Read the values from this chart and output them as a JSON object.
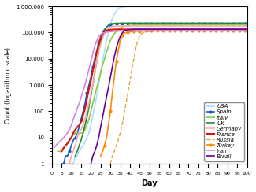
{
  "title": "",
  "xlabel": "Day",
  "ylabel": "Count (logarithmic scale)",
  "xlim": [
    0,
    100
  ],
  "ylim": [
    1,
    1000000
  ],
  "countries": [
    "USA",
    "Spain",
    "Italy",
    "UK",
    "Germany",
    "France",
    "Russia",
    "Turkey",
    "Iran",
    "Brazil"
  ],
  "colors": {
    "USA": "#aaddff",
    "Spain": "#1155cc",
    "Italy": "#88cc44",
    "UK": "#228833",
    "Germany": "#ffaaaa",
    "France": "#dd1111",
    "Russia": "#ddaa44",
    "Turkey": "#ff8800",
    "Iran": "#cc88dd",
    "Brazil": "#660099"
  },
  "xticks": [
    0,
    5,
    10,
    15,
    20,
    25,
    30,
    35,
    40,
    45,
    50,
    55,
    60,
    65,
    70,
    75,
    80,
    85,
    90,
    95,
    100
  ],
  "ytick_vals": [
    1,
    10,
    100,
    1000,
    10000,
    100000,
    1000000
  ],
  "line_styles": {
    "USA": {
      "lw": 1.2,
      "ls": "-",
      "marker": "",
      "ms": 0,
      "me": 3
    },
    "Spain": {
      "lw": 1.2,
      "ls": "-",
      "marker": "o",
      "ms": 2,
      "me": 3
    },
    "Italy": {
      "lw": 1.2,
      "ls": "-",
      "marker": "",
      "ms": 0,
      "me": 3
    },
    "UK": {
      "lw": 1.2,
      "ls": "-",
      "marker": "",
      "ms": 0,
      "me": 3
    },
    "Germany": {
      "lw": 1.2,
      "ls": "-",
      "marker": "",
      "ms": 0,
      "me": 3
    },
    "France": {
      "lw": 1.5,
      "ls": "-",
      "marker": "",
      "ms": 0,
      "me": 3
    },
    "Russia": {
      "lw": 1.0,
      "ls": "--",
      "marker": "",
      "ms": 0,
      "me": 3
    },
    "Turkey": {
      "lw": 1.2,
      "ls": "-",
      "marker": "o",
      "ms": 2,
      "me": 3
    },
    "Iran": {
      "lw": 1.2,
      "ls": "-",
      "marker": "",
      "ms": 0,
      "me": 3
    },
    "Brazil": {
      "lw": 1.2,
      "ls": "-",
      "marker": "",
      "ms": 0,
      "me": 3
    }
  }
}
